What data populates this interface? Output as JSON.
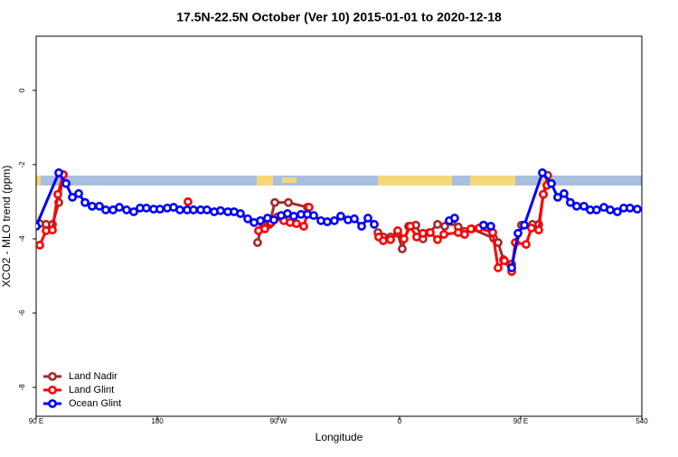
{
  "chart_data": {
    "type": "line",
    "title": "17.5N-22.5N October (Ver 10)   2015-01-01 to 2020-12-18",
    "x_label": "Longitude",
    "y_label": "XCO2 - MLO trend (ppm)",
    "xlim": [
      90,
      540
    ],
    "xticks": [
      {
        "value": 90,
        "label": "90 E"
      },
      180,
      {
        "value": 270,
        "label": "90 W"
      },
      {
        "value": 360,
        "label": "0"
      },
      {
        "value": 450,
        "label": "90 E"
      },
      540
    ],
    "ylim": [
      -8.78,
      1.46
    ],
    "yticks": [
      0,
      -2,
      -4,
      -6,
      -8
    ],
    "legend": "bottom-left",
    "series": [
      {
        "name": "Land Nadir",
        "color": "#a52a2a",
        "x": [
          92.7,
          97.4,
          102.1,
          106.8,
          110.1,
          null,
          254.5,
          257.9,
          263.3,
          267.3,
          277.4,
          291.5,
          null,
          343.9,
          347.9,
          353.3,
          358.6,
          362.0,
          366.7,
          372.1,
          377.4,
          382.1,
          388.2,
          393.6,
          398.9,
          403.6,
          408.3,
          413.7,
          429.8,
          433.2,
          437.2,
          443.3,
          450.6,
          458.7,
          463.4,
          466.8,
          470.1
        ],
        "values": [
          -3.59,
          -3.61,
          -3.61,
          -3.02,
          -2.27,
          null,
          -4.1,
          -3.56,
          -3.61,
          -3.02,
          -3.02,
          -3.15,
          null,
          -3.83,
          -3.95,
          -3.95,
          -3.85,
          -4.27,
          -3.66,
          -3.63,
          -4.0,
          -3.83,
          -3.61,
          -3.66,
          -3.54,
          -3.68,
          -3.8,
          -3.73,
          -3.98,
          -4.1,
          -4.56,
          -4.68,
          -3.63,
          -3.61,
          -3.61,
          -2.8,
          -2.29
        ]
      },
      {
        "name": "Land Glint",
        "color": "#ff0000",
        "x": [
          92.7,
          97.4,
          102.1,
          106.1,
          110.1,
          null,
          202.8,
          null,
          255.2,
          259.9,
          264.6,
          269.3,
          274.0,
          278.7,
          283.4,
          288.8,
          292.8,
          null,
          344.5,
          347.9,
          353.3,
          358.6,
          363.3,
          368.0,
          372.7,
          377.4,
          382.8,
          388.2,
          392.9,
          403.6,
          408.3,
          413.0,
          419.1,
          429.2,
          433.2,
          437.9,
          443.3,
          446.0,
          454.0,
          458.0,
          463.4,
          466.8,
          469.5
        ],
        "values": [
          -4.17,
          -3.78,
          -3.76,
          -2.8,
          -2.27,
          null,
          -3.0,
          null,
          -3.78,
          -3.73,
          -3.56,
          -3.41,
          -3.51,
          -3.56,
          -3.59,
          -3.66,
          -3.15,
          null,
          -3.95,
          -4.05,
          -4.02,
          -3.78,
          -4.0,
          -3.66,
          -3.95,
          -3.85,
          -3.83,
          -4.02,
          -3.88,
          -3.83,
          -3.88,
          -3.73,
          -3.71,
          -3.83,
          -4.78,
          -4.59,
          -4.88,
          -4.1,
          -4.15,
          -3.71,
          -3.76,
          -2.8,
          -2.56
        ]
      },
      {
        "name": "Ocean Glint",
        "color": "#0000ff",
        "x": [
          90,
          106.8,
          112.2,
          116.9,
          121.6,
          126.3,
          131.6,
          137.0,
          141.7,
          147.1,
          151.8,
          157.2,
          162.5,
          167.2,
          171.9,
          177.3,
          182.0,
          187.4,
          192.1,
          196.8,
          202.2,
          206.9,
          212.2,
          216.9,
          222.3,
          227.0,
          232.4,
          237.1,
          241.8,
          247.2,
          251.9,
          256.6,
          261.9,
          266.6,
          272.0,
          276.7,
          281.4,
          286.8,
          291.5,
          296.2,
          301.6,
          306.3,
          311.6,
          316.3,
          321.7,
          326.4,
          331.8,
          336.5,
          341.2,
          null,
          396.9,
          400.9,
          null,
          422.4,
          427.8,
          null,
          443.3,
          448.0,
          452.7,
          466.1,
          472.8,
          477.5,
          482.2,
          486.9,
          491.6,
          497.0,
          501.7,
          506.4,
          511.8,
          516.5,
          521.8,
          526.5,
          531.2,
          536.6
        ],
        "values": [
          -3.66,
          -2.22,
          -2.51,
          -2.88,
          -2.78,
          -3.02,
          -3.12,
          -3.12,
          -3.22,
          -3.22,
          -3.15,
          -3.22,
          -3.27,
          -3.17,
          -3.17,
          -3.2,
          -3.2,
          -3.17,
          -3.15,
          -3.22,
          -3.22,
          -3.22,
          -3.22,
          -3.22,
          -3.27,
          -3.24,
          -3.27,
          -3.27,
          -3.32,
          -3.46,
          -3.56,
          -3.51,
          -3.44,
          -3.49,
          -3.37,
          -3.32,
          -3.39,
          -3.34,
          -3.34,
          -3.37,
          -3.51,
          -3.54,
          -3.51,
          -3.39,
          -3.49,
          -3.46,
          -3.66,
          -3.44,
          -3.61,
          null,
          -3.51,
          -3.44,
          null,
          -3.63,
          -3.66,
          null,
          -4.78,
          -3.85,
          -3.63,
          -2.22,
          -2.51,
          -2.88,
          -2.78,
          -3.02,
          -3.12,
          -3.12,
          -3.22,
          -3.22,
          -3.15,
          -3.22,
          -3.27,
          -3.17,
          -3.17,
          -3.2
        ]
      }
    ]
  }
}
